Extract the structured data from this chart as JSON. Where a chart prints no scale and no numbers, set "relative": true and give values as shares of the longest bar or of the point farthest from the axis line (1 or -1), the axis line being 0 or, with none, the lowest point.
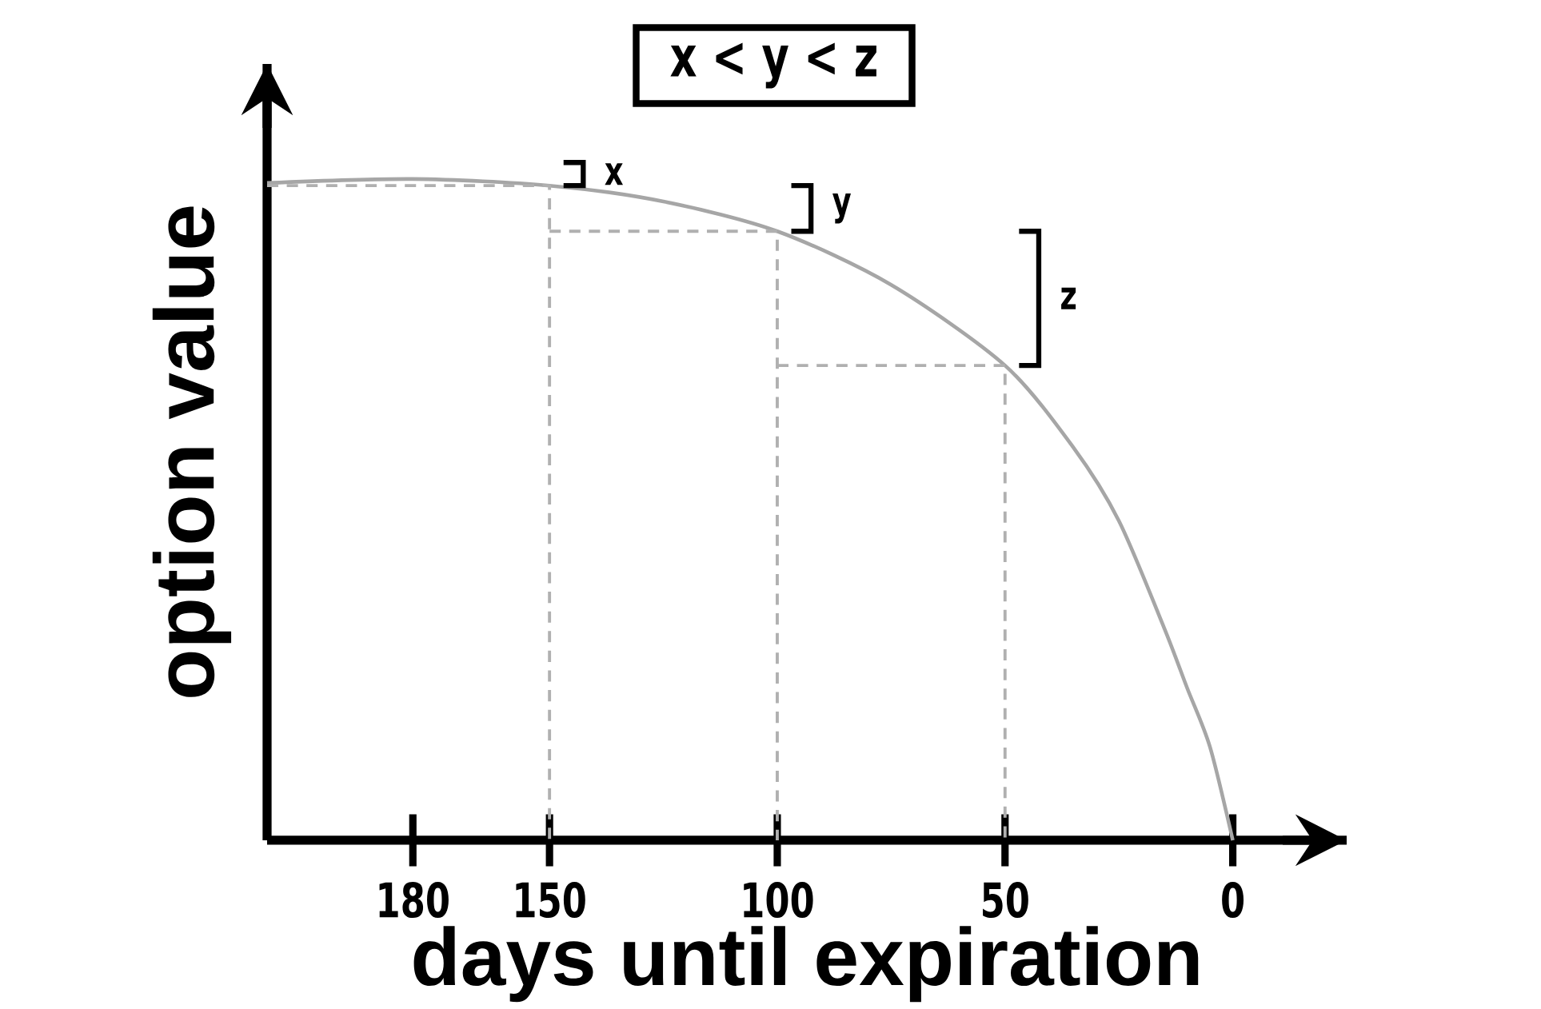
{
  "chart_data": {
    "type": "line",
    "relative": true,
    "title": "x < y < z",
    "xlabel": "days until expiration",
    "ylabel": "option value",
    "xlim": [
      212,
      -25
    ],
    "xticks": [
      180,
      150,
      100,
      50,
      0
    ],
    "series": [
      {
        "color": "#a6a6a6",
        "x": [
          212,
          180,
          150,
          125,
          100,
          75,
          50,
          35,
          25,
          15,
          10,
          5,
          0
        ],
        "values": [
          0.994,
          1,
          0.99,
          0.966,
          0.921,
          0.84,
          0.718,
          0.594,
          0.483,
          0.32,
          0.23,
          0.141,
          0
        ]
      },
      {
        "color": "#b0b0b0",
        "line_style": "dashed",
        "x": [
          212,
          150,
          150
        ],
        "values": [
          0.99,
          0.99,
          0
        ]
      },
      {
        "color": "#b0b0b0",
        "line_style": "dashed",
        "x": [
          150,
          100,
          100
        ],
        "values": [
          0.921,
          0.921,
          0
        ]
      },
      {
        "color": "#b0b0b0",
        "line_style": "dashed",
        "x": [
          100,
          50,
          50
        ],
        "values": [
          0.718,
          0.718,
          0
        ]
      }
    ],
    "annotations": [
      {
        "text": "x",
        "x": 150,
        "y": 0.99
      },
      {
        "text": "y",
        "x": 100,
        "y": 0.921
      },
      {
        "text": "z",
        "x": 50,
        "y": 0.718
      }
    ],
    "line_style": "solid"
  }
}
